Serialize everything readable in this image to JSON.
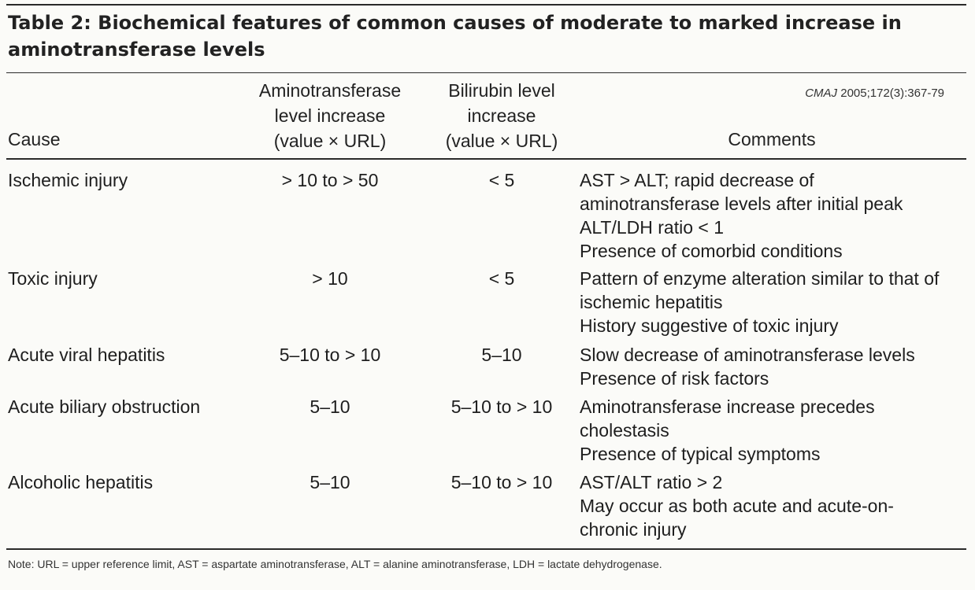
{
  "title": "Table 2: Biochemical features of common causes of moderate to marked increase in aminotransferase levels",
  "source": {
    "journal": "CMAJ",
    "citation": " 2005;172(3):367-79"
  },
  "headers": {
    "cause": "Cause",
    "aminotransferase": "Aminotransferase\nlevel increase\n(value × URL)",
    "bilirubin": "Bilirubin level\nincrease\n(value × URL)",
    "comments": "Comments"
  },
  "rows": [
    {
      "cause": "Ischemic injury",
      "aminotransferase": "> 10 to  > 50",
      "bilirubin": "< 5",
      "comments": [
        "AST > ALT; rapid decrease of",
        "aminotransferase levels after initial peak",
        "ALT/LDH ratio < 1",
        "Presence of comorbid conditions"
      ]
    },
    {
      "cause": "Toxic injury",
      "aminotransferase": "> 10",
      "bilirubin": "< 5",
      "comments": [
        "Pattern of enzyme alteration similar to that of",
        "ischemic hepatitis",
        "History suggestive of toxic injury"
      ]
    },
    {
      "cause": "Acute viral hepatitis",
      "aminotransferase": "5–10 to  > 10",
      "bilirubin": "5–10",
      "comments": [
        "Slow decrease of aminotransferase levels",
        "Presence of risk factors"
      ]
    },
    {
      "cause": "Acute biliary obstruction",
      "aminotransferase": "5–10",
      "bilirubin": "5–10 to > 10",
      "comments": [
        "Aminotransferase increase precedes",
        "cholestasis",
        "Presence of typical symptoms"
      ]
    },
    {
      "cause": "Alcoholic hepatitis",
      "aminotransferase": "5–10",
      "bilirubin": "5–10 to > 10",
      "comments": [
        "AST/ALT ratio > 2",
        "May occur as both acute and acute-on-",
        "chronic injury"
      ]
    }
  ],
  "note": "Note: URL = upper reference limit, AST = aspartate aminotransferase, ALT = alanine aminotransferase, LDH = lactate dehydrogenase."
}
